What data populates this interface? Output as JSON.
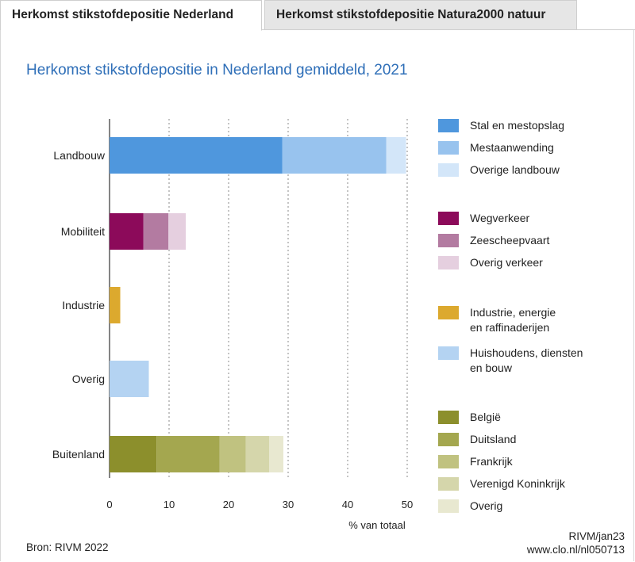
{
  "tabs": [
    {
      "label": "Herkomst stikstofdepositie Nederland",
      "active": true
    },
    {
      "label": "Herkomst stikstofdepositie Natura2000 natuur",
      "active": false
    }
  ],
  "chart_data": {
    "type": "bar",
    "orientation": "horizontal",
    "stacked": true,
    "title": "Herkomst stikstofdepositie in Nederland gemiddeld, 2021",
    "xlabel": "% van totaal",
    "xlim": [
      0,
      50
    ],
    "xticks": [
      0,
      10,
      20,
      30,
      40,
      50
    ],
    "grid": "vertical dashed",
    "legend_position": "right",
    "categories": [
      "Landbouw",
      "Mobiliteit",
      "Industrie",
      "Overig",
      "Buitenland"
    ],
    "series": [
      {
        "category": "Landbouw",
        "name": "Stal en mestopslag",
        "value": 29,
        "color": "#4f97dd"
      },
      {
        "category": "Landbouw",
        "name": "Mestaanwending",
        "value": 17.5,
        "color": "#98c3ee"
      },
      {
        "category": "Landbouw",
        "name": "Overige landbouw",
        "value": 3.3,
        "color": "#d3e6f9"
      },
      {
        "category": "Mobiliteit",
        "name": "Wegverkeer",
        "value": 5.7,
        "color": "#8c0a5a"
      },
      {
        "category": "Mobiliteit",
        "name": "Zeescheepvaart",
        "value": 4.2,
        "color": "#b37ba1"
      },
      {
        "category": "Mobiliteit",
        "name": "Overig verkeer",
        "value": 2.9,
        "color": "#e5cfdf"
      },
      {
        "category": "Industrie",
        "name": "Industrie, energie en raffinaderijen",
        "value": 1.8,
        "color": "#dca92e"
      },
      {
        "category": "Overig",
        "name": "Huishoudens, diensten en bouw",
        "value": 6.6,
        "color": "#b4d3f2"
      },
      {
        "category": "Buitenland",
        "name": "België",
        "value": 7.9,
        "color": "#8c8f2c"
      },
      {
        "category": "Buitenland",
        "name": "Duitsland",
        "value": 10.6,
        "color": "#a4a74f"
      },
      {
        "category": "Buitenland",
        "name": "Frankrijk",
        "value": 4.4,
        "color": "#c0c280"
      },
      {
        "category": "Buitenland",
        "name": "Verenigd Koninkrijk",
        "value": 3.9,
        "color": "#d5d6ab"
      },
      {
        "category": "Buitenland",
        "name": "Overig",
        "value": 2.4,
        "color": "#e8e8d0"
      }
    ],
    "legend_groups": [
      [
        {
          "lines": [
            "Stal en mestopslag"
          ],
          "color": "#4f97dd"
        },
        {
          "lines": [
            "Mestaanwending"
          ],
          "color": "#98c3ee"
        },
        {
          "lines": [
            "Overige landbouw"
          ],
          "color": "#d3e6f9"
        }
      ],
      [
        {
          "lines": [
            "Wegverkeer"
          ],
          "color": "#8c0a5a"
        },
        {
          "lines": [
            "Zeescheepvaart"
          ],
          "color": "#b37ba1"
        },
        {
          "lines": [
            "Overig verkeer"
          ],
          "color": "#e5cfdf"
        }
      ],
      [
        {
          "lines": [
            "Industrie, energie",
            "en raffinaderijen"
          ],
          "color": "#dca92e"
        },
        {
          "lines": [
            "Huishoudens, diensten",
            "en bouw"
          ],
          "color": "#b4d3f2"
        }
      ],
      [
        {
          "lines": [
            "België"
          ],
          "color": "#8c8f2c"
        },
        {
          "lines": [
            "Duitsland"
          ],
          "color": "#a4a74f"
        },
        {
          "lines": [
            "Frankrijk"
          ],
          "color": "#c0c280"
        },
        {
          "lines": [
            "Verenigd Koninkrijk"
          ],
          "color": "#d5d6ab"
        },
        {
          "lines": [
            "Overig"
          ],
          "color": "#e8e8d0"
        }
      ]
    ],
    "source": "Bron: RIVM 2022",
    "credit_line1": "RIVM/jan23",
    "credit_line2": "www.clo.nl/nl050713"
  }
}
